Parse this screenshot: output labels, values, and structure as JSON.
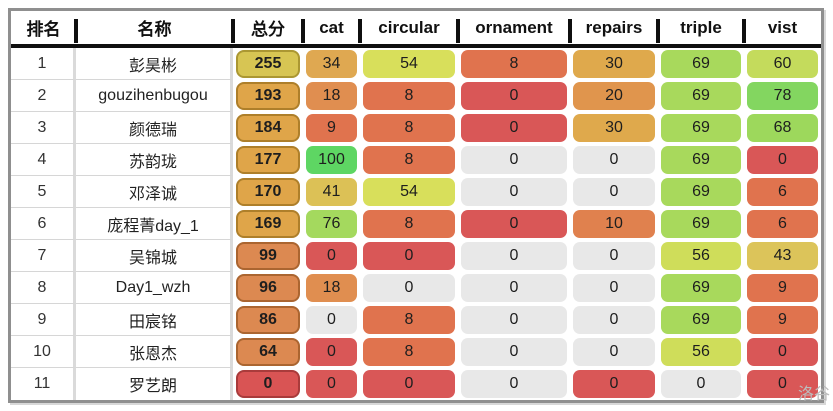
{
  "watermark": "洛谷",
  "colors": {
    "table_border": "#8f8f8f",
    "header_line": "#0f0f0f",
    "zero_gray": "#e8e8e8",
    "zero_red": "#d95757"
  },
  "table": {
    "headers": [
      "排名",
      "名称",
      "总分",
      "cat",
      "circular",
      "ornament",
      "repairs",
      "triple",
      "vist"
    ],
    "rows": [
      {
        "rank": "1",
        "name": "彭昊彬",
        "total": {
          "value": "255",
          "bg": "#d7c553",
          "border": "#ab9732"
        },
        "scores": [
          {
            "value": "34",
            "bg": "#dfa851"
          },
          {
            "value": "54",
            "bg": "#d8df5b"
          },
          {
            "value": "8",
            "bg": "#e0734e"
          },
          {
            "value": "30",
            "bg": "#dfa94c"
          },
          {
            "value": "69",
            "bg": "#a8d95c"
          },
          {
            "value": "60",
            "bg": "#c4db5c"
          }
        ]
      },
      {
        "rank": "2",
        "name": "gouzihenbugou",
        "total": {
          "value": "193",
          "bg": "#dfa549",
          "border": "#ae7f2a"
        },
        "scores": [
          {
            "value": "18",
            "bg": "#e08e50"
          },
          {
            "value": "8",
            "bg": "#e0734e"
          },
          {
            "value": "0",
            "bg": "#d95757"
          },
          {
            "value": "20",
            "bg": "#e0954d"
          },
          {
            "value": "69",
            "bg": "#a8d95c"
          },
          {
            "value": "78",
            "bg": "#83d660"
          }
        ]
      },
      {
        "rank": "3",
        "name": "颜德瑞",
        "total": {
          "value": "184",
          "bg": "#dfa549",
          "border": "#ae7f2a"
        },
        "scores": [
          {
            "value": "9",
            "bg": "#e0734e"
          },
          {
            "value": "8",
            "bg": "#e0734e"
          },
          {
            "value": "0",
            "bg": "#d95757"
          },
          {
            "value": "30",
            "bg": "#dfa94c"
          },
          {
            "value": "69",
            "bg": "#a8d95c"
          },
          {
            "value": "68",
            "bg": "#9dd85c"
          }
        ]
      },
      {
        "rank": "4",
        "name": "苏韵珑",
        "total": {
          "value": "177",
          "bg": "#dfa549",
          "border": "#ae7f2a"
        },
        "scores": [
          {
            "value": "100",
            "bg": "#5ed663"
          },
          {
            "value": "8",
            "bg": "#e0734e"
          },
          {
            "value": "0",
            "bg": "#e8e8e8"
          },
          {
            "value": "0",
            "bg": "#e8e8e8"
          },
          {
            "value": "69",
            "bg": "#a8d95c"
          },
          {
            "value": "0",
            "bg": "#d95757"
          }
        ]
      },
      {
        "rank": "5",
        "name": "邓泽诚",
        "total": {
          "value": "170",
          "bg": "#dfa549",
          "border": "#ae7f2a"
        },
        "scores": [
          {
            "value": "41",
            "bg": "#dcc156"
          },
          {
            "value": "54",
            "bg": "#d8df5b"
          },
          {
            "value": "0",
            "bg": "#e8e8e8"
          },
          {
            "value": "0",
            "bg": "#e8e8e8"
          },
          {
            "value": "69",
            "bg": "#a8d95c"
          },
          {
            "value": "6",
            "bg": "#e0734e"
          }
        ]
      },
      {
        "rank": "6",
        "name": "庞程菁day_1",
        "total": {
          "value": "169",
          "bg": "#dfa549",
          "border": "#ae7f2a"
        },
        "scores": [
          {
            "value": "76",
            "bg": "#a4d95e"
          },
          {
            "value": "8",
            "bg": "#e0734e"
          },
          {
            "value": "0",
            "bg": "#d95757"
          },
          {
            "value": "10",
            "bg": "#e0814e"
          },
          {
            "value": "69",
            "bg": "#a8d95c"
          },
          {
            "value": "6",
            "bg": "#e0734e"
          }
        ]
      },
      {
        "rank": "7",
        "name": "吴锦城",
        "total": {
          "value": "99",
          "bg": "#dc8951",
          "border": "#ab6530"
        },
        "scores": [
          {
            "value": "0",
            "bg": "#d95757"
          },
          {
            "value": "0",
            "bg": "#d95757"
          },
          {
            "value": "0",
            "bg": "#e8e8e8"
          },
          {
            "value": "0",
            "bg": "#e8e8e8"
          },
          {
            "value": "56",
            "bg": "#cfdd5a"
          },
          {
            "value": "43",
            "bg": "#dcc45a"
          }
        ]
      },
      {
        "rank": "8",
        "name": "Day1_wzh",
        "total": {
          "value": "96",
          "bg": "#dc8951",
          "border": "#ab6530"
        },
        "scores": [
          {
            "value": "18",
            "bg": "#e08e50"
          },
          {
            "value": "0",
            "bg": "#e8e8e8"
          },
          {
            "value": "0",
            "bg": "#e8e8e8"
          },
          {
            "value": "0",
            "bg": "#e8e8e8"
          },
          {
            "value": "69",
            "bg": "#a8d95c"
          },
          {
            "value": "9",
            "bg": "#e0734e"
          }
        ]
      },
      {
        "rank": "9",
        "name": "田宸铭",
        "total": {
          "value": "86",
          "bg": "#dc8951",
          "border": "#ab6530"
        },
        "scores": [
          {
            "value": "0",
            "bg": "#e8e8e8"
          },
          {
            "value": "8",
            "bg": "#e0734e"
          },
          {
            "value": "0",
            "bg": "#e8e8e8"
          },
          {
            "value": "0",
            "bg": "#e8e8e8"
          },
          {
            "value": "69",
            "bg": "#a8d95c"
          },
          {
            "value": "9",
            "bg": "#e0734e"
          }
        ]
      },
      {
        "rank": "10",
        "name": "张恩杰",
        "total": {
          "value": "64",
          "bg": "#dc8951",
          "border": "#ab6530"
        },
        "scores": [
          {
            "value": "0",
            "bg": "#d95757"
          },
          {
            "value": "8",
            "bg": "#e0734e"
          },
          {
            "value": "0",
            "bg": "#e8e8e8"
          },
          {
            "value": "0",
            "bg": "#e8e8e8"
          },
          {
            "value": "56",
            "bg": "#cfdd5a"
          },
          {
            "value": "0",
            "bg": "#d95757"
          }
        ]
      },
      {
        "rank": "11",
        "name": "罗艺朗",
        "total": {
          "value": "0",
          "bg": "#d95454",
          "border": "#a93b3b"
        },
        "scores": [
          {
            "value": "0",
            "bg": "#d95757"
          },
          {
            "value": "0",
            "bg": "#d95757"
          },
          {
            "value": "0",
            "bg": "#e8e8e8"
          },
          {
            "value": "0",
            "bg": "#d95757"
          },
          {
            "value": "0",
            "bg": "#e8e8e8"
          },
          {
            "value": "0",
            "bg": "#d95757"
          }
        ]
      }
    ]
  }
}
